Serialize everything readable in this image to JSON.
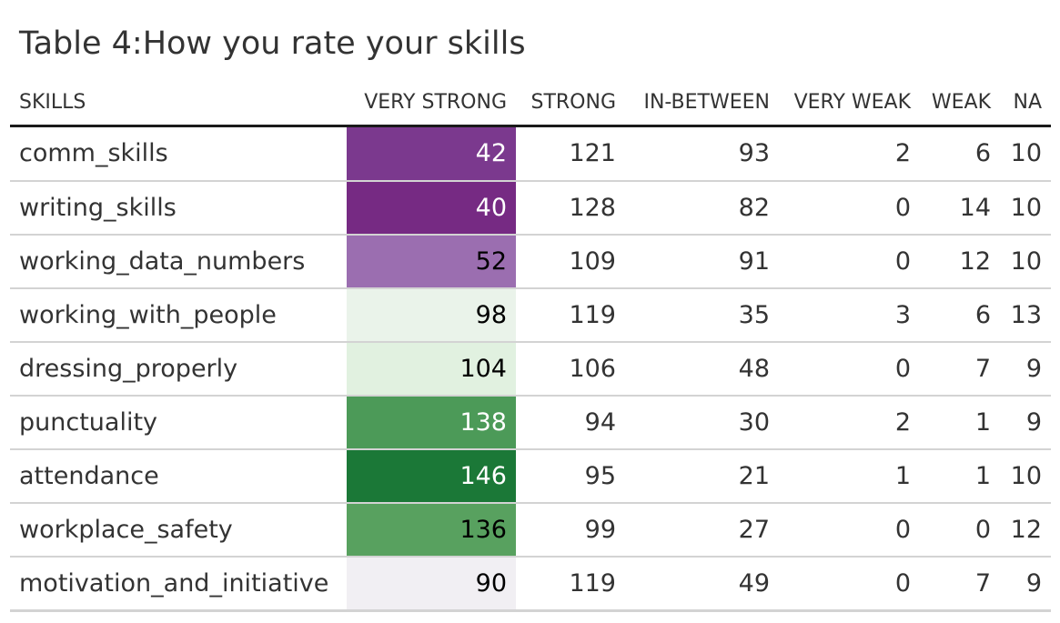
{
  "title": "Table 4:How you rate your skills",
  "columns": [
    "SKILLS",
    "VERY STRONG",
    "STRONG",
    "IN-BETWEEN",
    "VERY WEAK",
    "WEAK",
    "NA"
  ],
  "rows": [
    {
      "skill": "comm_skills",
      "very_strong": 42,
      "strong": 121,
      "in_between": 93,
      "very_weak": 2,
      "weak": 6,
      "na": 10,
      "fill": "#7b398e",
      "text_color": "#ffffff"
    },
    {
      "skill": "writing_skills",
      "very_strong": 40,
      "strong": 128,
      "in_between": 82,
      "very_weak": 0,
      "weak": 14,
      "na": 10,
      "fill": "#762a83",
      "text_color": "#ffffff"
    },
    {
      "skill": "working_data_numbers",
      "very_strong": 52,
      "strong": 109,
      "in_between": 91,
      "very_weak": 0,
      "weak": 12,
      "na": 10,
      "fill": "#9b6eb0",
      "text_color": "#000000"
    },
    {
      "skill": "working_with_people",
      "very_strong": 98,
      "strong": 119,
      "in_between": 35,
      "very_weak": 3,
      "weak": 6,
      "na": 13,
      "fill": "#eaf3ea",
      "text_color": "#000000"
    },
    {
      "skill": "dressing_properly",
      "very_strong": 104,
      "strong": 106,
      "in_between": 48,
      "very_weak": 0,
      "weak": 7,
      "na": 9,
      "fill": "#e1f1e0",
      "text_color": "#000000"
    },
    {
      "skill": "punctuality",
      "very_strong": 138,
      "strong": 94,
      "in_between": 30,
      "very_weak": 2,
      "weak": 1,
      "na": 9,
      "fill": "#4c9a58",
      "text_color": "#ffffff"
    },
    {
      "skill": "attendance",
      "very_strong": 146,
      "strong": 95,
      "in_between": 21,
      "very_weak": 1,
      "weak": 1,
      "na": 10,
      "fill": "#1b7837",
      "text_color": "#ffffff"
    },
    {
      "skill": "workplace_safety",
      "very_strong": 136,
      "strong": 99,
      "in_between": 27,
      "very_weak": 0,
      "weak": 0,
      "na": 12,
      "fill": "#58a15f",
      "text_color": "#000000"
    },
    {
      "skill": "motivation_and_initiative",
      "very_strong": 90,
      "strong": 119,
      "in_between": 49,
      "very_weak": 0,
      "weak": 7,
      "na": 9,
      "fill": "#f1eff3",
      "text_color": "#000000"
    }
  ]
}
